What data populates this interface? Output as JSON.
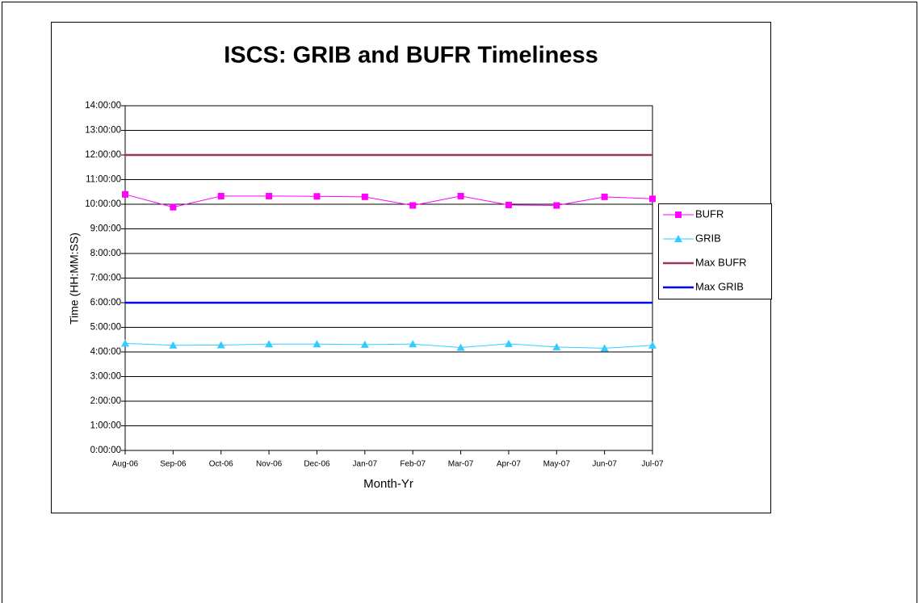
{
  "chart_data": {
    "type": "line",
    "title": "ISCS:  GRIB and BUFR Timeliness",
    "x_label": "Month-Yr",
    "y_label": "Time (HH:MM:SS)",
    "categories": [
      "Aug-06",
      "Sep-06",
      "Oct-06",
      "Nov-06",
      "Dec-06",
      "Jan-07",
      "Feb-07",
      "Mar-07",
      "Apr-07",
      "May-07",
      "Jun-07",
      "Jul-07"
    ],
    "series": [
      {
        "name": "BUFR",
        "color": "#ff00ff",
        "marker": "square",
        "values": [
          10.4,
          9.88,
          10.33,
          10.33,
          10.32,
          10.3,
          9.95,
          10.33,
          9.97,
          9.95,
          10.3,
          10.22
        ]
      },
      {
        "name": "GRIB",
        "color": "#33ccff",
        "marker": "triangle",
        "values": [
          4.35,
          4.27,
          4.28,
          4.32,
          4.32,
          4.3,
          4.32,
          4.18,
          4.33,
          4.2,
          4.15,
          4.27
        ]
      },
      {
        "name": "Max BUFR",
        "color": "#993366",
        "marker": "none",
        "values": [
          12,
          12,
          12,
          12,
          12,
          12,
          12,
          12,
          12,
          12,
          12,
          12
        ]
      },
      {
        "name": "Max GRIB",
        "color": "#0000ff",
        "marker": "none",
        "values": [
          6,
          6,
          6,
          6,
          6,
          6,
          6,
          6,
          6,
          6,
          6,
          6
        ]
      }
    ],
    "ylim": [
      0,
      14
    ],
    "yticks": [
      {
        "value": 0,
        "label": "0:00:00"
      },
      {
        "value": 1,
        "label": "1:00:00"
      },
      {
        "value": 2,
        "label": "2:00:00"
      },
      {
        "value": 3,
        "label": "3:00:00"
      },
      {
        "value": 4,
        "label": "4:00:00"
      },
      {
        "value": 5,
        "label": "5:00:00"
      },
      {
        "value": 6,
        "label": "6:00:00"
      },
      {
        "value": 7,
        "label": "7:00:00"
      },
      {
        "value": 8,
        "label": "8:00:00"
      },
      {
        "value": 9,
        "label": "9:00:00"
      },
      {
        "value": 10,
        "label": "10:00:00"
      },
      {
        "value": 11,
        "label": "11:00:00"
      },
      {
        "value": 12,
        "label": "12:00:00"
      },
      {
        "value": 13,
        "label": "13:00:00"
      },
      {
        "value": 14,
        "label": "14:00:00"
      }
    ],
    "grid": true,
    "legend": "right"
  }
}
